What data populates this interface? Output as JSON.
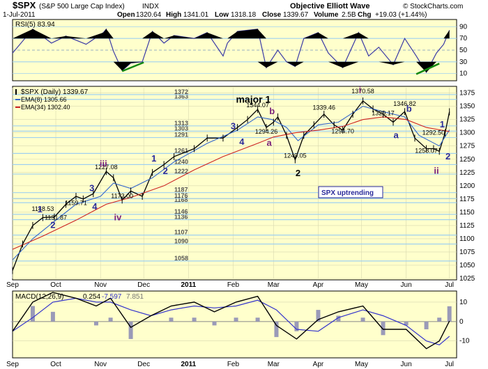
{
  "header": {
    "symbol": "$SPX",
    "name": "(S&P 500 Large Cap Index)",
    "exchange": "INDX",
    "date": "1-Jul-2011",
    "open_label": "Open",
    "open": "1320.64",
    "high_label": "High",
    "high": "1341.01",
    "low_label": "Low",
    "low": "1318.18",
    "close_label": "Close",
    "close": "1339.67",
    "volume_label": "Volume",
    "volume": "2.5B",
    "chg_label": "Chg",
    "chg": "+19.03 (+1.44%)",
    "source": "Objective Elliott Wave",
    "copyright": "© StockCharts.com"
  },
  "colors": {
    "panel_bg": "#ffffcc",
    "grid": "#9fd0f0",
    "price_bar": "#000000",
    "ema_fast": "#3366cc",
    "ema_slow": "#cc2222",
    "rsi_line": "#3a3aa6",
    "wave_blue": "#2a2a9a",
    "wave_purple": "#7a1f7a",
    "wave_black": "#000000",
    "trend_green": "#118811",
    "note_bg": "#ffffff"
  },
  "chart_data": [
    {
      "type": "line",
      "title": "RSI(5) 83.94",
      "ylim": [
        0,
        100
      ],
      "ticks": [
        10,
        30,
        50,
        70,
        90
      ],
      "overbought": 70,
      "oversold": 30,
      "x_dates": [
        "2010-09-01",
        "2010-09-15",
        "2010-09-28",
        "2010-10-08",
        "2010-10-22",
        "2010-11-03",
        "2010-11-05",
        "2010-11-10",
        "2010-11-16",
        "2010-11-22",
        "2010-11-30",
        "2010-12-07",
        "2010-12-15",
        "2010-12-22",
        "2011-01-05",
        "2011-01-14",
        "2011-01-25",
        "2011-01-28",
        "2011-02-04",
        "2011-02-18",
        "2011-02-24",
        "2011-03-04",
        "2011-03-10",
        "2011-03-16",
        "2011-03-22",
        "2011-04-01",
        "2011-04-08",
        "2011-04-18",
        "2011-04-29",
        "2011-05-06",
        "2011-05-13",
        "2011-05-23",
        "2011-05-31",
        "2011-06-08",
        "2011-06-15",
        "2011-06-22",
        "2011-06-27",
        "2011-07-01"
      ],
      "values": [
        45,
        86,
        62,
        74,
        60,
        80,
        86,
        48,
        15,
        28,
        30,
        82,
        62,
        75,
        70,
        80,
        40,
        62,
        82,
        86,
        20,
        50,
        30,
        22,
        70,
        80,
        45,
        20,
        80,
        40,
        55,
        25,
        70,
        40,
        12,
        45,
        60,
        84
      ],
      "trendlines": [
        {
          "from": [
            "2010-11-16",
            14
          ],
          "to": [
            "2010-12-01",
            29
          ]
        },
        {
          "from": [
            "2011-06-08",
            9
          ],
          "to": [
            "2011-06-24",
            27
          ]
        }
      ]
    },
    {
      "type": "line",
      "title": "$SPX (Daily) 1339.67",
      "ylim": [
        1025,
        1385
      ],
      "price_levels": [
        1058,
        1090,
        1107,
        1136,
        1146,
        1168,
        1176,
        1187,
        1222,
        1240,
        1261,
        1291,
        1303,
        1313,
        1363,
        1372
      ],
      "y_ticks": [
        1025,
        1050,
        1075,
        1100,
        1125,
        1150,
        1175,
        1200,
        1225,
        1250,
        1275,
        1300,
        1325,
        1350,
        1375
      ],
      "x_ticks": [
        "Sep",
        "Oct",
        "Nov",
        "Dec",
        "2011",
        "Feb",
        "Mar",
        "Apr",
        "May",
        "Jun",
        "Jul"
      ],
      "x_tick_dates": [
        "2010-09-01",
        "2010-10-01",
        "2010-11-01",
        "2010-12-01",
        "2011-01-01",
        "2011-02-01",
        "2011-03-01",
        "2011-04-01",
        "2011-05-01",
        "2011-06-01",
        "2011-07-01"
      ],
      "x_range": [
        "2010-09-01",
        "2011-07-06"
      ],
      "series": [
        {
          "name": "$SPX (Daily) 1339.67",
          "x": [
            "2010-09-01",
            "2010-09-08",
            "2010-09-15",
            "2010-09-22",
            "2010-09-30",
            "2010-10-08",
            "2010-10-15",
            "2010-10-20",
            "2010-10-27",
            "2010-11-05",
            "2010-11-10",
            "2010-11-16",
            "2010-11-22",
            "2010-11-30",
            "2010-12-07",
            "2010-12-15",
            "2010-12-22",
            "2011-01-05",
            "2011-01-14",
            "2011-01-25",
            "2011-02-04",
            "2011-02-11",
            "2011-02-18",
            "2011-02-24",
            "2011-03-01",
            "2011-03-04",
            "2011-03-10",
            "2011-03-16",
            "2011-03-22",
            "2011-03-29",
            "2011-04-05",
            "2011-04-12",
            "2011-04-18",
            "2011-04-25",
            "2011-05-02",
            "2011-05-09",
            "2011-05-16",
            "2011-05-23",
            "2011-05-31",
            "2011-06-07",
            "2011-06-15",
            "2011-06-20",
            "2011-06-24",
            "2011-06-28",
            "2011-07-01"
          ],
          "values": [
            1040,
            1090,
            1125,
            1140,
            1141,
            1165,
            1180,
            1175,
            1185,
            1227,
            1215,
            1173,
            1190,
            1180,
            1225,
            1240,
            1255,
            1270,
            1290,
            1290,
            1310,
            1325,
            1344,
            1310,
            1320,
            1330,
            1295,
            1249,
            1295,
            1315,
            1335,
            1315,
            1305,
            1335,
            1360,
            1345,
            1335,
            1320,
            1340,
            1290,
            1270,
            1270,
            1265,
            1300,
            1339.67
          ]
        },
        {
          "name": "EMA(8) 1305.66",
          "x": [
            "2010-09-01",
            "2010-09-15",
            "2010-10-01",
            "2010-10-15",
            "2010-11-01",
            "2010-11-10",
            "2010-11-22",
            "2010-12-07",
            "2010-12-22",
            "2011-01-14",
            "2011-02-04",
            "2011-02-18",
            "2011-02-28",
            "2011-03-10",
            "2011-03-18",
            "2011-04-01",
            "2011-04-15",
            "2011-05-02",
            "2011-05-16",
            "2011-05-31",
            "2011-06-10",
            "2011-06-24",
            "2011-07-01"
          ],
          "values": [
            1060,
            1100,
            1135,
            1165,
            1180,
            1205,
            1195,
            1215,
            1245,
            1280,
            1305,
            1330,
            1325,
            1310,
            1285,
            1315,
            1320,
            1350,
            1340,
            1330,
            1295,
            1275,
            1305.66
          ]
        },
        {
          "name": "EMA(34) 1302.40",
          "x": [
            "2010-09-01",
            "2010-09-22",
            "2010-10-15",
            "2010-11-05",
            "2010-11-22",
            "2010-12-15",
            "2011-01-05",
            "2011-01-25",
            "2011-02-18",
            "2011-03-01",
            "2011-03-16",
            "2011-04-01",
            "2011-04-18",
            "2011-05-02",
            "2011-05-16",
            "2011-06-01",
            "2011-06-15",
            "2011-07-01"
          ],
          "values": [
            1080,
            1105,
            1135,
            1165,
            1178,
            1200,
            1230,
            1255,
            1280,
            1292,
            1300,
            1305,
            1312,
            1325,
            1330,
            1325,
            1310,
            1302.4
          ]
        }
      ],
      "price_annotations": [
        {
          "text": "1148.53",
          "x": "2010-09-22",
          "y": 1148.53
        },
        {
          "text": "1131.87",
          "x": "2010-10-01",
          "y": 1131.87
        },
        {
          "text": "1159.71",
          "x": "2010-10-15",
          "y": 1159.71
        },
        {
          "text": "1227.08",
          "x": "2010-11-05",
          "y": 1227.08
        },
        {
          "text": "1173.00",
          "x": "2010-11-16",
          "y": 1173
        },
        {
          "text": "1344.07",
          "x": "2011-02-18",
          "y": 1344.07
        },
        {
          "text": "1294.26",
          "x": "2011-02-24",
          "y": 1294.26
        },
        {
          "text": "1249.05",
          "x": "2011-03-16",
          "y": 1249.05
        },
        {
          "text": "1339.46",
          "x": "2011-04-05",
          "y": 1339.46
        },
        {
          "text": "1294.70",
          "x": "2011-04-18",
          "y": 1294.7
        },
        {
          "text": "1370.58",
          "x": "2011-05-02",
          "y": 1370.58
        },
        {
          "text": "1329.17",
          "x": "2011-05-16",
          "y": 1329.17
        },
        {
          "text": "1346.82",
          "x": "2011-05-31",
          "y": 1346.82
        },
        {
          "text": "1292.50",
          "x": "2011-06-20",
          "y": 1292.5
        },
        {
          "text": "1258.07",
          "x": "2011-06-15",
          "y": 1258.07
        }
      ],
      "wave_labels": [
        {
          "text": "1",
          "x": "2010-09-20",
          "y": 1150,
          "color": "wave_blue"
        },
        {
          "text": "2",
          "x": "2010-09-29",
          "y": 1120,
          "color": "wave_blue"
        },
        {
          "text": "3",
          "x": "2010-10-26",
          "y": 1190,
          "color": "wave_blue"
        },
        {
          "text": "4",
          "x": "2010-10-28",
          "y": 1155,
          "color": "wave_blue"
        },
        {
          "text": "iii",
          "x": "2010-11-03",
          "y": 1236,
          "color": "wave_purple"
        },
        {
          "text": "iv",
          "x": "2010-11-13",
          "y": 1135,
          "color": "wave_purple"
        },
        {
          "text": "1",
          "x": "2010-12-08",
          "y": 1246,
          "color": "wave_blue"
        },
        {
          "text": "2",
          "x": "2010-12-16",
          "y": 1222,
          "color": "wave_blue"
        },
        {
          "text": "3",
          "x": "2011-02-01",
          "y": 1307,
          "color": "wave_blue"
        },
        {
          "text": "4",
          "x": "2011-02-07",
          "y": 1277,
          "color": "wave_blue"
        },
        {
          "text": "major 1",
          "x": "2011-02-15",
          "y": 1357,
          "color": "wave_black"
        },
        {
          "text": "b",
          "x": "2011-02-28",
          "y": 1335,
          "color": "wave_purple"
        },
        {
          "text": "a",
          "x": "2011-02-26",
          "y": 1275,
          "color": "wave_purple"
        },
        {
          "text": "2",
          "x": "2011-03-18",
          "y": 1218,
          "color": "wave_black"
        },
        {
          "text": "i",
          "x": "2011-04-30",
          "y": 1375,
          "color": "wave_purple"
        },
        {
          "text": "b",
          "x": "2011-06-03",
          "y": 1340,
          "color": "wave_blue"
        },
        {
          "text": "a",
          "x": "2011-05-25",
          "y": 1290,
          "color": "wave_blue"
        },
        {
          "text": "1",
          "x": "2011-06-26",
          "y": 1310,
          "color": "wave_blue"
        },
        {
          "text": "2",
          "x": "2011-06-30",
          "y": 1250,
          "color": "wave_blue"
        },
        {
          "text": "ii",
          "x": "2011-06-22",
          "y": 1223,
          "color": "wave_purple"
        }
      ],
      "note": "SPX uptrending",
      "legend": [
        {
          "label": "$SPX (Daily) 1339.67",
          "color": "price_bar"
        },
        {
          "label": "EMA(8) 1305.66",
          "color": "ema_fast"
        },
        {
          "label": "EMA(34) 1302.40",
          "color": "ema_slow"
        }
      ]
    },
    {
      "type": "line",
      "title": "MACD(12,26,9) 0.254, -7.597, 7.851",
      "legend_parts": [
        "MACD(12,26,9)",
        "0.254",
        "-7.597",
        "7.851"
      ],
      "ylim": [
        -18,
        15
      ],
      "ticks": [
        -10,
        0,
        10
      ],
      "x_dates": [
        "2010-09-01",
        "2010-09-15",
        "2010-09-29",
        "2010-10-15",
        "2010-10-29",
        "2010-11-08",
        "2010-11-22",
        "2010-12-06",
        "2010-12-20",
        "2011-01-05",
        "2011-01-19",
        "2011-02-03",
        "2011-02-18",
        "2011-03-03",
        "2011-03-17",
        "2011-04-01",
        "2011-04-15",
        "2011-05-02",
        "2011-05-16",
        "2011-06-01",
        "2011-06-15",
        "2011-06-24",
        "2011-07-01"
      ],
      "macd": [
        -5,
        10,
        15,
        12,
        8,
        12,
        -3,
        3,
        8,
        10,
        5,
        10,
        13,
        -2,
        -9,
        1,
        5,
        8,
        -4,
        -4,
        -14,
        -10,
        0.254
      ],
      "signal": [
        -5,
        2,
        10,
        12,
        10,
        10,
        6,
        3,
        6,
        8,
        7,
        8,
        11,
        6,
        -4,
        -5,
        2,
        6,
        3,
        -2,
        -10,
        -12,
        -7.597
      ],
      "histogram": [
        0,
        8,
        5,
        0,
        -2,
        2,
        -9,
        0,
        2,
        2,
        -2,
        2,
        2,
        -8,
        -5,
        6,
        3,
        2,
        -7,
        -2,
        -4,
        2,
        7.851
      ]
    }
  ]
}
